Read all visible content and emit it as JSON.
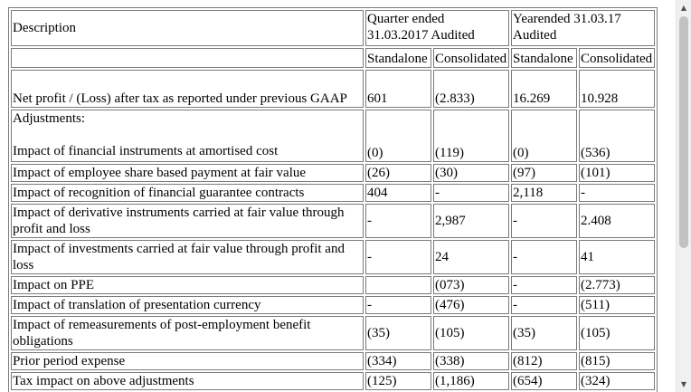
{
  "table": {
    "header": {
      "description": "Description",
      "quarter_line1": "Quarter ended",
      "quarter_line2": "31.03.2017 Audited",
      "year_line1": "Yearended 31.03.17",
      "year_line2": "Audited",
      "sub": [
        "Standalone",
        "Consolidated",
        "Standalone",
        "Consolidated"
      ]
    },
    "rows": [
      {
        "label": "Net profit / (Loss) after tax as reported under previous GAAP",
        "values": [
          "601",
          "(2.833)",
          "16.269",
          "10.928"
        ]
      },
      {
        "label_top": "Adjustments:",
        "label": "Impact of financial instruments at amortised cost",
        "values": [
          "(0)",
          "(119)",
          "(0)",
          "(536)"
        ]
      },
      {
        "label": "Impact of employee share based payment at fair value",
        "values": [
          "(26)",
          "(30)",
          "(97)",
          "(101)"
        ]
      },
      {
        "label": "Impact of recognition of financial guarantee contracts",
        "values": [
          "404",
          "-",
          "2,118",
          "-"
        ]
      },
      {
        "label": "Impact of derivative instruments carried at fair value through profit and loss",
        "values": [
          "-",
          "2,987",
          "-",
          "2.408"
        ]
      },
      {
        "label": "Impact of investments carried at fair value through profit and loss",
        "values": [
          "-",
          "24",
          "-",
          "41"
        ]
      },
      {
        "label": "Impact on PPE",
        "values": [
          "",
          "(073)",
          "-",
          "(2.773)"
        ]
      },
      {
        "label": "Impact of translation of presentation currency",
        "values": [
          "-",
          "(476)",
          "-",
          "(511)"
        ]
      },
      {
        "label": "Impact of remeasurements of post-employment benefit obligations",
        "values": [
          "(35)",
          "(105)",
          "(35)",
          "(105)"
        ]
      },
      {
        "label": "Prior period expense",
        "values": [
          "(334)",
          "(338)",
          "(812)",
          "(815)"
        ]
      },
      {
        "label": "Tax impact on above adjustments",
        "values": [
          "(125)",
          "(1,186)",
          "(654)",
          "(324)"
        ]
      }
    ]
  },
  "scrollbar": {
    "up_icon": "▲",
    "down_icon": "▼"
  }
}
